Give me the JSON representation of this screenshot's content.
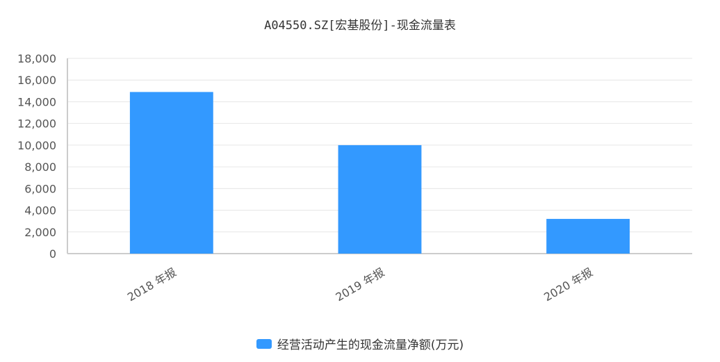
{
  "chart_data": {
    "type": "bar",
    "title": "A04550.SZ[宏基股份]-现金流量表",
    "categories": [
      "2018 年报",
      "2019 年报",
      "2020 年报"
    ],
    "series": [
      {
        "name": "经营活动产生的现金流量净额(万元)",
        "values": [
          14900,
          10000,
          3200
        ],
        "color": "#3399ff"
      }
    ],
    "ylim": [
      0,
      18000
    ],
    "yticks": [
      0,
      2000,
      4000,
      6000,
      8000,
      10000,
      12000,
      14000,
      16000,
      18000
    ],
    "ytick_labels": [
      "0",
      "2,000",
      "4,000",
      "6,000",
      "8,000",
      "10,000",
      "12,000",
      "14,000",
      "16,000",
      "18,000"
    ],
    "grid": true,
    "legend_position": "bottom-center",
    "xtick_rotation": "-30deg"
  }
}
